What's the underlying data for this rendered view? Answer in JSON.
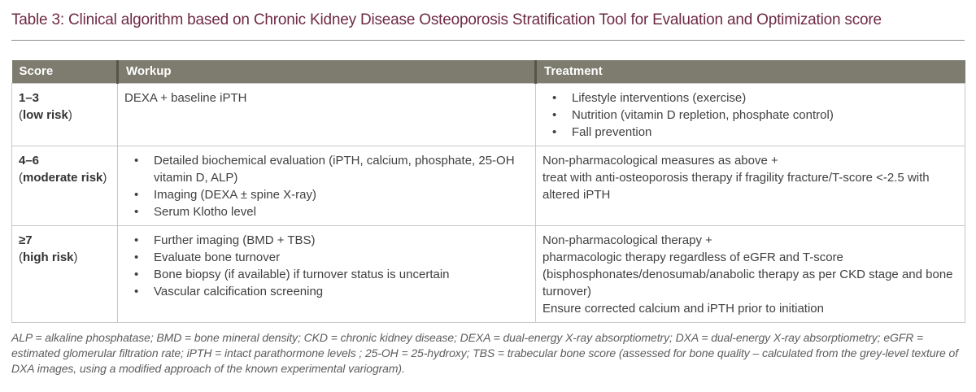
{
  "title": "Table 3: Clinical algorithm based on Chronic Kidney Disease Osteoporosis Stratification Tool for Evaluation and Optimization score",
  "colors": {
    "title_text": "#6e2a44",
    "header_bg": "#7d7c6f",
    "header_text": "#ffffff",
    "header_separator": "#565549",
    "body_border": "#c8c8c3",
    "body_text": "#404040",
    "footnote_text": "#5d5d5d"
  },
  "punct": {
    "open_paren": "(",
    "close_paren": ")"
  },
  "table": {
    "headers": [
      "Score",
      "Workup",
      "Treatment"
    ],
    "rows": [
      {
        "score": "1–3",
        "risk": "low risk",
        "workup_text": "DEXA + baseline iPTH",
        "treatment_bullets": [
          "Lifestyle interventions (exercise)",
          "Nutrition (vitamin D repletion, phosphate control)",
          "Fall prevention"
        ]
      },
      {
        "score": "4–6",
        "risk": "moderate risk",
        "workup_bullets": [
          "Detailed biochemical evaluation (iPTH, calcium, phosphate, 25-OH vitamin D, ALP)",
          "Imaging (DEXA ± spine X-ray)",
          "Serum Klotho level"
        ],
        "treatment_lines": [
          "Non-pharmacological measures as above +",
          "treat with anti-osteoporosis therapy if fragility fracture/T-score <-2.5 with altered iPTH"
        ]
      },
      {
        "score": "≥7",
        "risk": "high risk",
        "workup_bullets": [
          "Further imaging (BMD + TBS)",
          "Evaluate bone turnover",
          "Bone biopsy (if available) if turnover status is uncertain",
          "Vascular calcification screening"
        ],
        "treatment_lines": [
          "Non-pharmacological therapy +",
          "pharmacologic therapy regardless of eGFR and T-score",
          "(bisphosphonates/denosumab/anabolic therapy as per CKD stage and bone turnover)",
          "Ensure corrected calcium and iPTH prior to initiation"
        ]
      }
    ]
  },
  "footnote": "ALP = alkaline phosphatase; BMD = bone mineral density; CKD = chronic kidney disease; DEXA = dual-energy X-ray absorptiometry; DXA = dual-energy X-ray absorptiometry; eGFR = estimated glomerular filtration rate; iPTH = intact parathormone levels ; 25-OH = 25-hydroxy; TBS = trabecular bone score (assessed for bone quality – calculated from the grey-level texture of DXA images, using a modified approach of the known experimental variogram)."
}
